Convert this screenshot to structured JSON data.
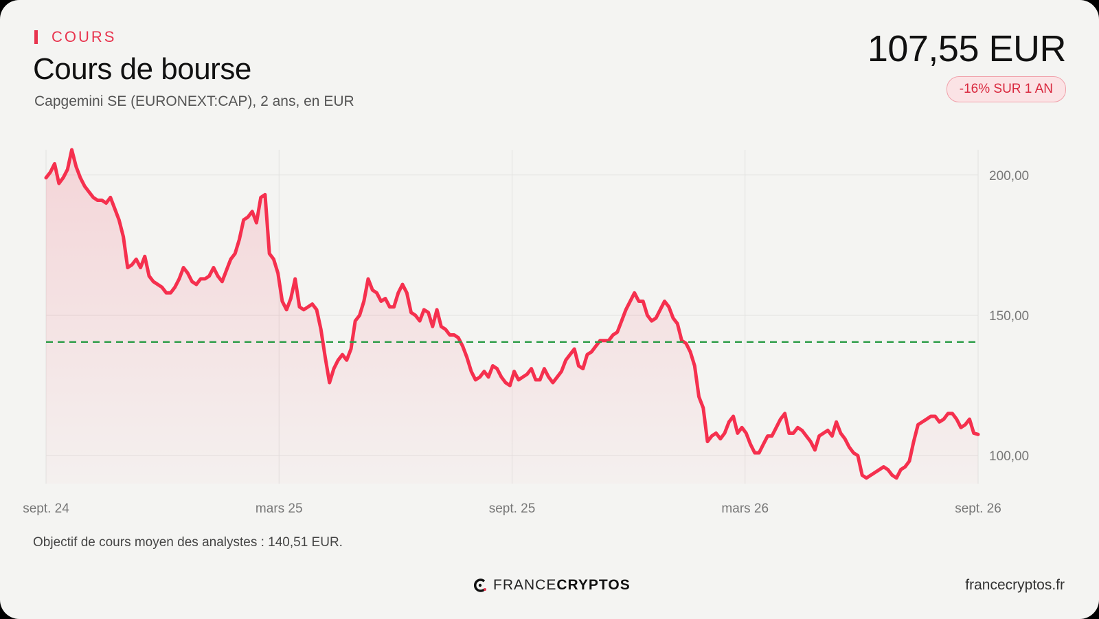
{
  "header": {
    "kicker": "COURS",
    "title": "Cours de bourse",
    "subtitle": "Capgemini SE (EURONEXT:CAP), 2 ans, en EUR",
    "price": "107,55 EUR",
    "change_badge": "-16% SUR 1 AN"
  },
  "note": "Objectif de cours moyen des analystes : 140,51 EUR.",
  "footer": {
    "brand_light": "FRANCE",
    "brand_bold": "CRYPTOS",
    "site": "francecryptos.fr"
  },
  "colors": {
    "line": "#f5304e",
    "target": "#2f9e4a",
    "accent": "#e8344e"
  },
  "chart_data": {
    "type": "line",
    "x_ticks": [
      "sept. 24",
      "mars 25",
      "sept. 25",
      "mars 26",
      "sept. 26"
    ],
    "y_ticks": [
      "100,00",
      "150,00",
      "200,00"
    ],
    "y_tick_values": [
      100,
      150,
      200
    ],
    "ylim": [
      90,
      209
    ],
    "grid": true,
    "target_line": 140.51,
    "series": [
      {
        "values": [
          199,
          201,
          204,
          197,
          199,
          202,
          209,
          203,
          199,
          196,
          194,
          192,
          191,
          191,
          190,
          192,
          188,
          184,
          178,
          167,
          168,
          170,
          167,
          171,
          164,
          162,
          161,
          160,
          158,
          158,
          160,
          163,
          167,
          165,
          162,
          161,
          163,
          163,
          164,
          167,
          164,
          162,
          166,
          170,
          172,
          177,
          184,
          185,
          187,
          183,
          192,
          193,
          172,
          170,
          165,
          155,
          152,
          156,
          163,
          153,
          152,
          153,
          154,
          152,
          145,
          135,
          126,
          131,
          134,
          136,
          134,
          138,
          148,
          150,
          155,
          163,
          159,
          158,
          155,
          156,
          153,
          153,
          158,
          161,
          158,
          151,
          150,
          148,
          152,
          151,
          146,
          152,
          146,
          145,
          143,
          143,
          142,
          139,
          135,
          130,
          127,
          128,
          130,
          128,
          132,
          131,
          128,
          126,
          125,
          130,
          127,
          128,
          129,
          131,
          127,
          127,
          131,
          128,
          126,
          128,
          130,
          134,
          136,
          138,
          132,
          131,
          136,
          137,
          139,
          141,
          141,
          141,
          143,
          144,
          148,
          152,
          155,
          158,
          155,
          155,
          150,
          148,
          149,
          152,
          155,
          153,
          149,
          147,
          141,
          140,
          137,
          132,
          121,
          117,
          105,
          107,
          108,
          106,
          108,
          112,
          114,
          108,
          110,
          108,
          104,
          101,
          101,
          104,
          107,
          107,
          110,
          113,
          115,
          108,
          108,
          110,
          109,
          107,
          105,
          102,
          107,
          108,
          109,
          107,
          112,
          108,
          106,
          103,
          101,
          100,
          93,
          92,
          93,
          94,
          95,
          96,
          95,
          93,
          92,
          95,
          96,
          98,
          105,
          111,
          112,
          113,
          114,
          114,
          112,
          113,
          115,
          115,
          113,
          110,
          111,
          113,
          108,
          107.55
        ]
      }
    ]
  }
}
